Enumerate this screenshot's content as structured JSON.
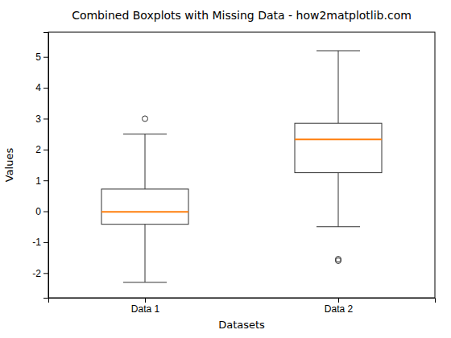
{
  "chart_data": {
    "type": "box",
    "title": "Combined Boxplots with Missing Data - how2matplotlib.com",
    "x_label": "Datasets",
    "y_label": "Values",
    "categories": [
      "Data 1",
      "Data 2"
    ],
    "boxes": [
      {
        "whisker_low": -2.3,
        "q1": -0.42,
        "median": -0.02,
        "q3": 0.72,
        "whisker_high": 2.5,
        "outliers": [
          3.0
        ]
      },
      {
        "whisker_low": -0.5,
        "q1": 1.25,
        "median": 2.33,
        "q3": 2.85,
        "whisker_high": 5.2,
        "outliers": [
          -1.55,
          -1.6
        ]
      }
    ],
    "ylim": [
      -2.8,
      5.8
    ],
    "yticks": [
      -2,
      -1,
      0,
      1,
      2,
      3,
      4,
      5
    ],
    "grid": false
  }
}
